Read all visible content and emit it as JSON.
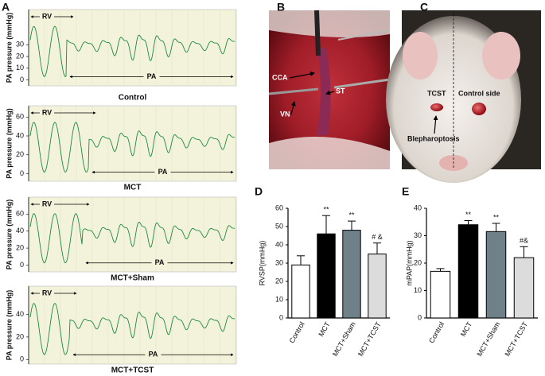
{
  "panel_a": {
    "label": "A",
    "traces": [
      {
        "caption": "Control",
        "y_label": "PA  pressure (mmHg)",
        "rv_label": "RV",
        "pa_label": "PA",
        "ylim": [
          -5,
          60
        ],
        "yticks": [
          0,
          10,
          20,
          30
        ]
      },
      {
        "caption": "MCT",
        "y_label": "PA  pressure (mmHg)",
        "rv_label": "RV",
        "pa_label": "PA",
        "ylim": [
          -8,
          72
        ],
        "yticks": [
          0,
          20,
          40,
          60
        ]
      },
      {
        "caption": "MCT+Sham",
        "y_label": "PA  pressure (mmHg)",
        "rv_label": "RV",
        "pa_label": "PA",
        "ylim": [
          -8,
          80
        ],
        "yticks": [
          0,
          20,
          40,
          60
        ]
      },
      {
        "caption": "MCT+TCST",
        "y_label": "PA  pressure (mmHg)",
        "rv_label": "RV",
        "pa_label": "PA",
        "ylim": [
          -4,
          65
        ],
        "yticks": [
          0,
          20,
          40
        ]
      }
    ]
  },
  "panel_b": {
    "label": "B",
    "labels": [
      "CCA",
      "ST",
      "VN"
    ]
  },
  "panel_c": {
    "label": "C",
    "labels": [
      "TCST",
      "Control side",
      "Blepharoptosis"
    ]
  },
  "chart_data": [
    {
      "type": "bar",
      "panel_label": "D",
      "y_label": "RVSP(mmHg)",
      "categories": [
        "Control",
        "MCT",
        "MCT+Sham",
        "MCT+TCST"
      ],
      "values": [
        29,
        46,
        48,
        35
      ],
      "errors": [
        5,
        10,
        5,
        6
      ],
      "colors": [
        "#ffffff",
        "#000000",
        "#6f8088",
        "#dcdcdc"
      ],
      "annotations": [
        null,
        "**",
        "**",
        "# &"
      ],
      "ylim": [
        0,
        60
      ],
      "yticks": [
        0,
        10,
        20,
        30,
        40,
        50,
        60
      ]
    },
    {
      "type": "bar",
      "panel_label": "E",
      "y_label": "mPAP(mmHg)",
      "categories": [
        "Control",
        "MCT",
        "MCT+Sham",
        "MCT+TCST"
      ],
      "values": [
        17,
        34,
        31.5,
        22
      ],
      "errors": [
        1,
        1.5,
        3,
        4
      ],
      "colors": [
        "#ffffff",
        "#000000",
        "#6f8088",
        "#dcdcdc"
      ],
      "annotations": [
        null,
        "**",
        "**",
        "#&"
      ],
      "ylim": [
        0,
        40
      ],
      "yticks": [
        0,
        10,
        20,
        30,
        40
      ]
    }
  ]
}
